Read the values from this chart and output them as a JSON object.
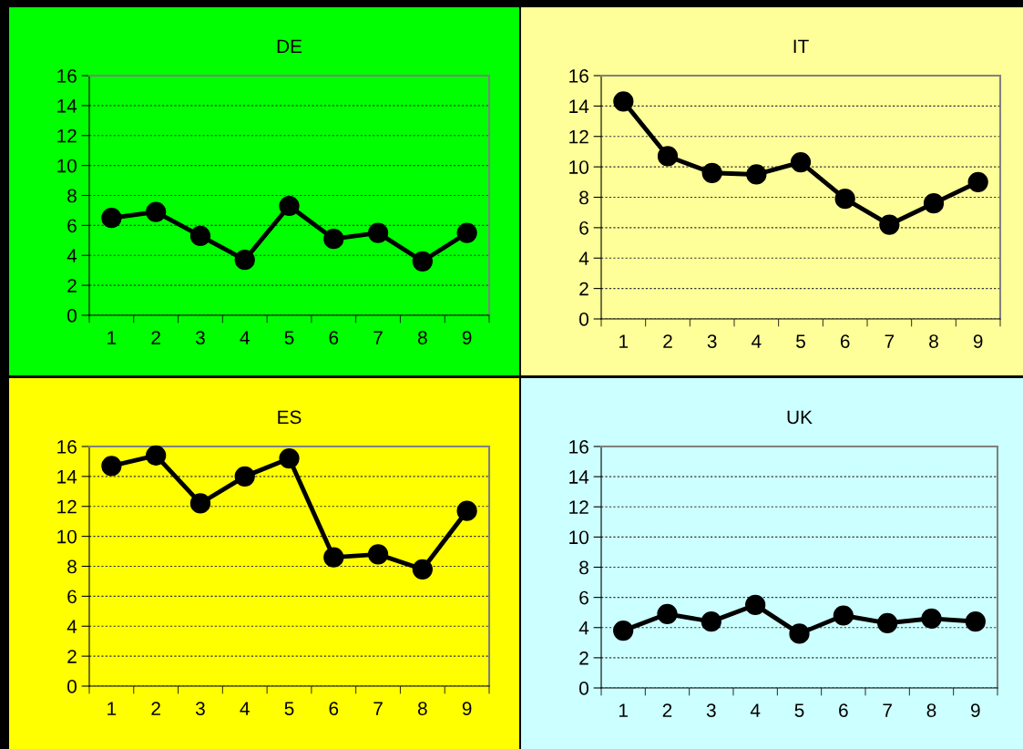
{
  "chart_data": [
    {
      "type": "line",
      "title": "DE",
      "categories": [
        "1",
        "2",
        "3",
        "4",
        "5",
        "6",
        "7",
        "8",
        "9"
      ],
      "series": [
        {
          "color": "#000000",
          "values": [
            6.5,
            6.9,
            5.3,
            3.7,
            7.3,
            5.1,
            5.5,
            3.6,
            5.5
          ]
        }
      ],
      "ylim": [
        0,
        16
      ],
      "yticks": [
        0,
        2,
        4,
        6,
        8,
        10,
        12,
        14,
        16
      ],
      "grid": "y",
      "marker": "circle",
      "line_style": "solid"
    },
    {
      "type": "line",
      "title": "IT",
      "categories": [
        "1",
        "2",
        "3",
        "4",
        "5",
        "6",
        "7",
        "8",
        "9"
      ],
      "series": [
        {
          "color": "#000000",
          "values": [
            14.3,
            10.7,
            9.6,
            9.5,
            10.3,
            7.9,
            6.2,
            7.6,
            9.0
          ]
        }
      ],
      "ylim": [
        0,
        16
      ],
      "yticks": [
        0,
        2,
        4,
        6,
        8,
        10,
        12,
        14,
        16
      ],
      "grid": "y",
      "marker": "circle",
      "line_style": "solid"
    },
    {
      "type": "line",
      "title": "ES",
      "categories": [
        "1",
        "2",
        "3",
        "4",
        "5",
        "6",
        "7",
        "8",
        "9"
      ],
      "series": [
        {
          "color": "#000000",
          "values": [
            14.7,
            15.4,
            12.2,
            14.0,
            15.2,
            8.6,
            8.8,
            7.8,
            11.7
          ]
        }
      ],
      "ylim": [
        0,
        16
      ],
      "yticks": [
        0,
        2,
        4,
        6,
        8,
        10,
        12,
        14,
        16
      ],
      "grid": "y",
      "marker": "circle",
      "line_style": "solid"
    },
    {
      "type": "line",
      "title": "UK",
      "categories": [
        "1",
        "2",
        "3",
        "4",
        "5",
        "6",
        "7",
        "8",
        "9"
      ],
      "series": [
        {
          "color": "#000000",
          "values": [
            3.8,
            4.9,
            4.4,
            5.5,
            3.6,
            4.8,
            4.3,
            4.6,
            4.4
          ]
        }
      ],
      "ylim": [
        0,
        16
      ],
      "yticks": [
        0,
        2,
        4,
        6,
        8,
        10,
        12,
        14,
        16
      ],
      "grid": "y",
      "marker": "circle",
      "line_style": "solid"
    }
  ]
}
